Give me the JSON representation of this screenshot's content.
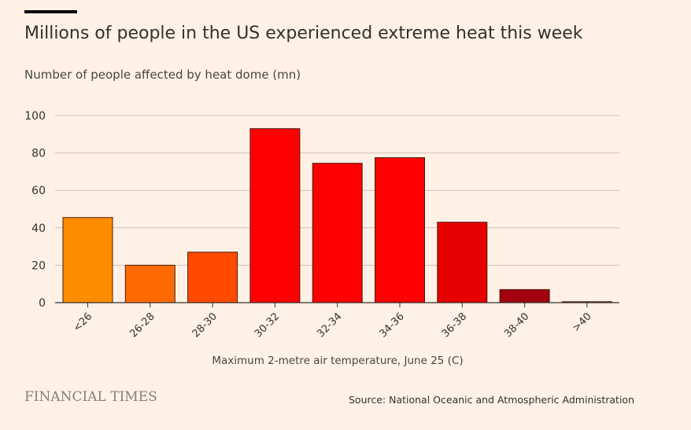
{
  "header": {
    "title": "Millions of people in the US experienced extreme heat this week",
    "subtitle": "Number of people affected by heat dome (mn)"
  },
  "footer": {
    "logo_text": "FINANCIAL TIMES",
    "source": "Source: National Oceanic and Atmospheric Administration"
  },
  "chart_data": {
    "type": "bar",
    "categories": [
      "<26",
      "26-28",
      "28-30",
      "30-32",
      "32-34",
      "34-36",
      "36-38",
      "38-40",
      ">40"
    ],
    "values": [
      45.5,
      20,
      27,
      93,
      74.5,
      77.5,
      43,
      7,
      0.5
    ],
    "bar_colors": [
      "#ff8c00",
      "#ff6a00",
      "#ff4a00",
      "#ff0000",
      "#ff0000",
      "#ff0000",
      "#e60000",
      "#a30010",
      "#7a1020"
    ],
    "xlabel": "Maximum 2-metre air temperature, June 25 (C)",
    "ylabel": "",
    "ylim": [
      0,
      100
    ],
    "yticks": [
      0,
      20,
      40,
      60,
      80,
      100
    ],
    "grid": true
  }
}
